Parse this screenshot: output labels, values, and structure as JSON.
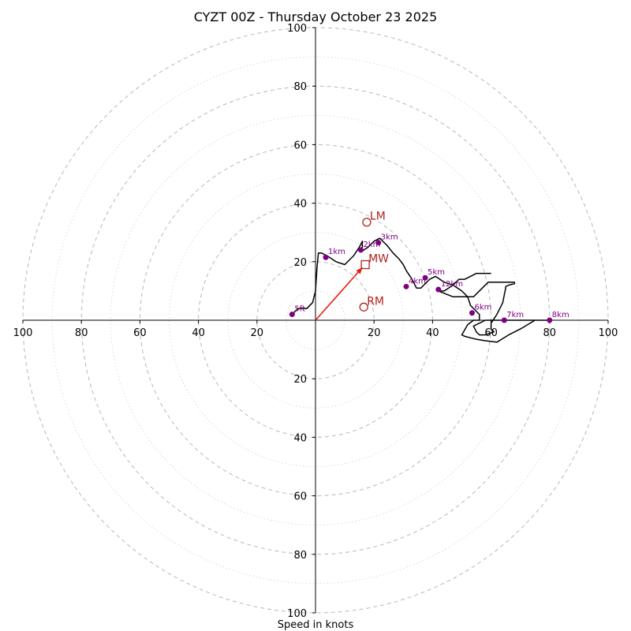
{
  "chart_data": {
    "type": "hodograph",
    "title": "CYZT 00Z - Thursday October 23 2025",
    "xlabel": "Speed in knots",
    "units": "knots",
    "xlim": [
      -100,
      100
    ],
    "ylim": [
      -100,
      100
    ],
    "ring_major": [
      20,
      40,
      60,
      80,
      100
    ],
    "ring_minor": [
      10,
      30,
      50,
      70,
      90
    ],
    "x_ticks": [
      {
        "value": -100,
        "label": "100"
      },
      {
        "value": -80,
        "label": "80"
      },
      {
        "value": -60,
        "label": "60"
      },
      {
        "value": -40,
        "label": "40"
      },
      {
        "value": -20,
        "label": "20"
      },
      {
        "value": 20,
        "label": "20"
      },
      {
        "value": 40,
        "label": "40"
      },
      {
        "value": 60,
        "label": "60"
      },
      {
        "value": 80,
        "label": "80"
      },
      {
        "value": 100,
        "label": "100"
      }
    ],
    "y_ticks": [
      {
        "value": 100,
        "label": "100"
      },
      {
        "value": 80,
        "label": "80"
      },
      {
        "value": 60,
        "label": "60"
      },
      {
        "value": 40,
        "label": "40"
      },
      {
        "value": 20,
        "label": "20"
      },
      {
        "value": -20,
        "label": "20"
      },
      {
        "value": -40,
        "label": "40"
      },
      {
        "value": -60,
        "label": "60"
      },
      {
        "value": -80,
        "label": "80"
      },
      {
        "value": -100,
        "label": "100"
      }
    ],
    "hodograph": {
      "u": [
        -8,
        -6,
        -3,
        -1,
        0,
        0.5,
        1,
        2,
        3,
        4,
        7,
        10,
        13,
        15,
        16,
        16,
        15,
        15.5,
        16.5,
        18,
        20,
        22,
        24.5,
        26.5,
        28.5,
        30,
        31,
        33,
        34.5,
        36,
        37,
        39,
        41,
        44,
        47,
        50,
        52,
        53,
        55,
        56,
        56,
        54,
        52,
        50,
        50,
        51,
        53,
        55,
        58,
        62,
        66,
        70,
        75,
        80,
        76,
        74,
        72,
        73,
        72,
        73,
        66,
        64,
        62,
        62,
        60,
        58,
        54,
        55,
        56,
        58,
        61,
        60,
        60,
        62,
        64,
        65,
        65,
        66,
        68,
        68,
        64,
        59,
        54,
        47,
        42,
        44,
        47,
        49,
        51,
        55,
        58,
        60
      ],
      "v": [
        2,
        4,
        4,
        6,
        10,
        18,
        23,
        23,
        22.5,
        22,
        20,
        19,
        22,
        25,
        27,
        25,
        23.5,
        23.5,
        24,
        25,
        27,
        28,
        25.5,
        23,
        21,
        19,
        17,
        14,
        11,
        11,
        12,
        14,
        15,
        13,
        12,
        10,
        8,
        5,
        3,
        2,
        0,
        0,
        -1.5,
        -5,
        -5,
        -5.5,
        -6,
        -6.5,
        -7,
        -7.5,
        -5,
        -3,
        0,
        0,
        0,
        0,
        0,
        0,
        0,
        0,
        0,
        0,
        0,
        0,
        0,
        0,
        -2,
        -4,
        -5,
        -5,
        -4,
        -3,
        -1,
        2,
        6,
        11,
        11.5,
        12,
        12.5,
        13,
        13,
        13,
        8,
        8,
        10,
        10,
        12,
        14,
        14,
        16,
        16,
        16
      ]
    },
    "height_markers": [
      {
        "label": "5ft",
        "u": -8,
        "v": 2
      },
      {
        "label": "1km",
        "u": 3.5,
        "v": 21.5
      },
      {
        "label": "2km",
        "u": 15.5,
        "v": 24
      },
      {
        "label": "3km",
        "u": 21.5,
        "v": 26.5
      },
      {
        "label": "4km",
        "u": 31,
        "v": 11.5
      },
      {
        "label": "5km",
        "u": 37.5,
        "v": 14.5
      },
      {
        "label": "12km",
        "u": 42,
        "v": 10.5
      },
      {
        "label": "6km",
        "u": 53.5,
        "v": 2.5
      },
      {
        "label": "7km",
        "u": 64.5,
        "v": 0
      },
      {
        "label": "8km",
        "u": 80,
        "v": 0
      }
    ],
    "storm_motions": [
      {
        "label": "LM",
        "u": 17.5,
        "v": 33.5,
        "marker": "circle"
      },
      {
        "label": "MW",
        "u": 17,
        "v": 19,
        "marker": "square"
      },
      {
        "label": "RM",
        "u": 16.5,
        "v": 4.5,
        "marker": "circle"
      }
    ],
    "storm_vector": {
      "u": 16,
      "v": 18
    },
    "colors": {
      "profile": "#000000",
      "height_marker": "#800080",
      "storm_motion": "#b22222",
      "storm_vector": "#e8190f"
    }
  }
}
